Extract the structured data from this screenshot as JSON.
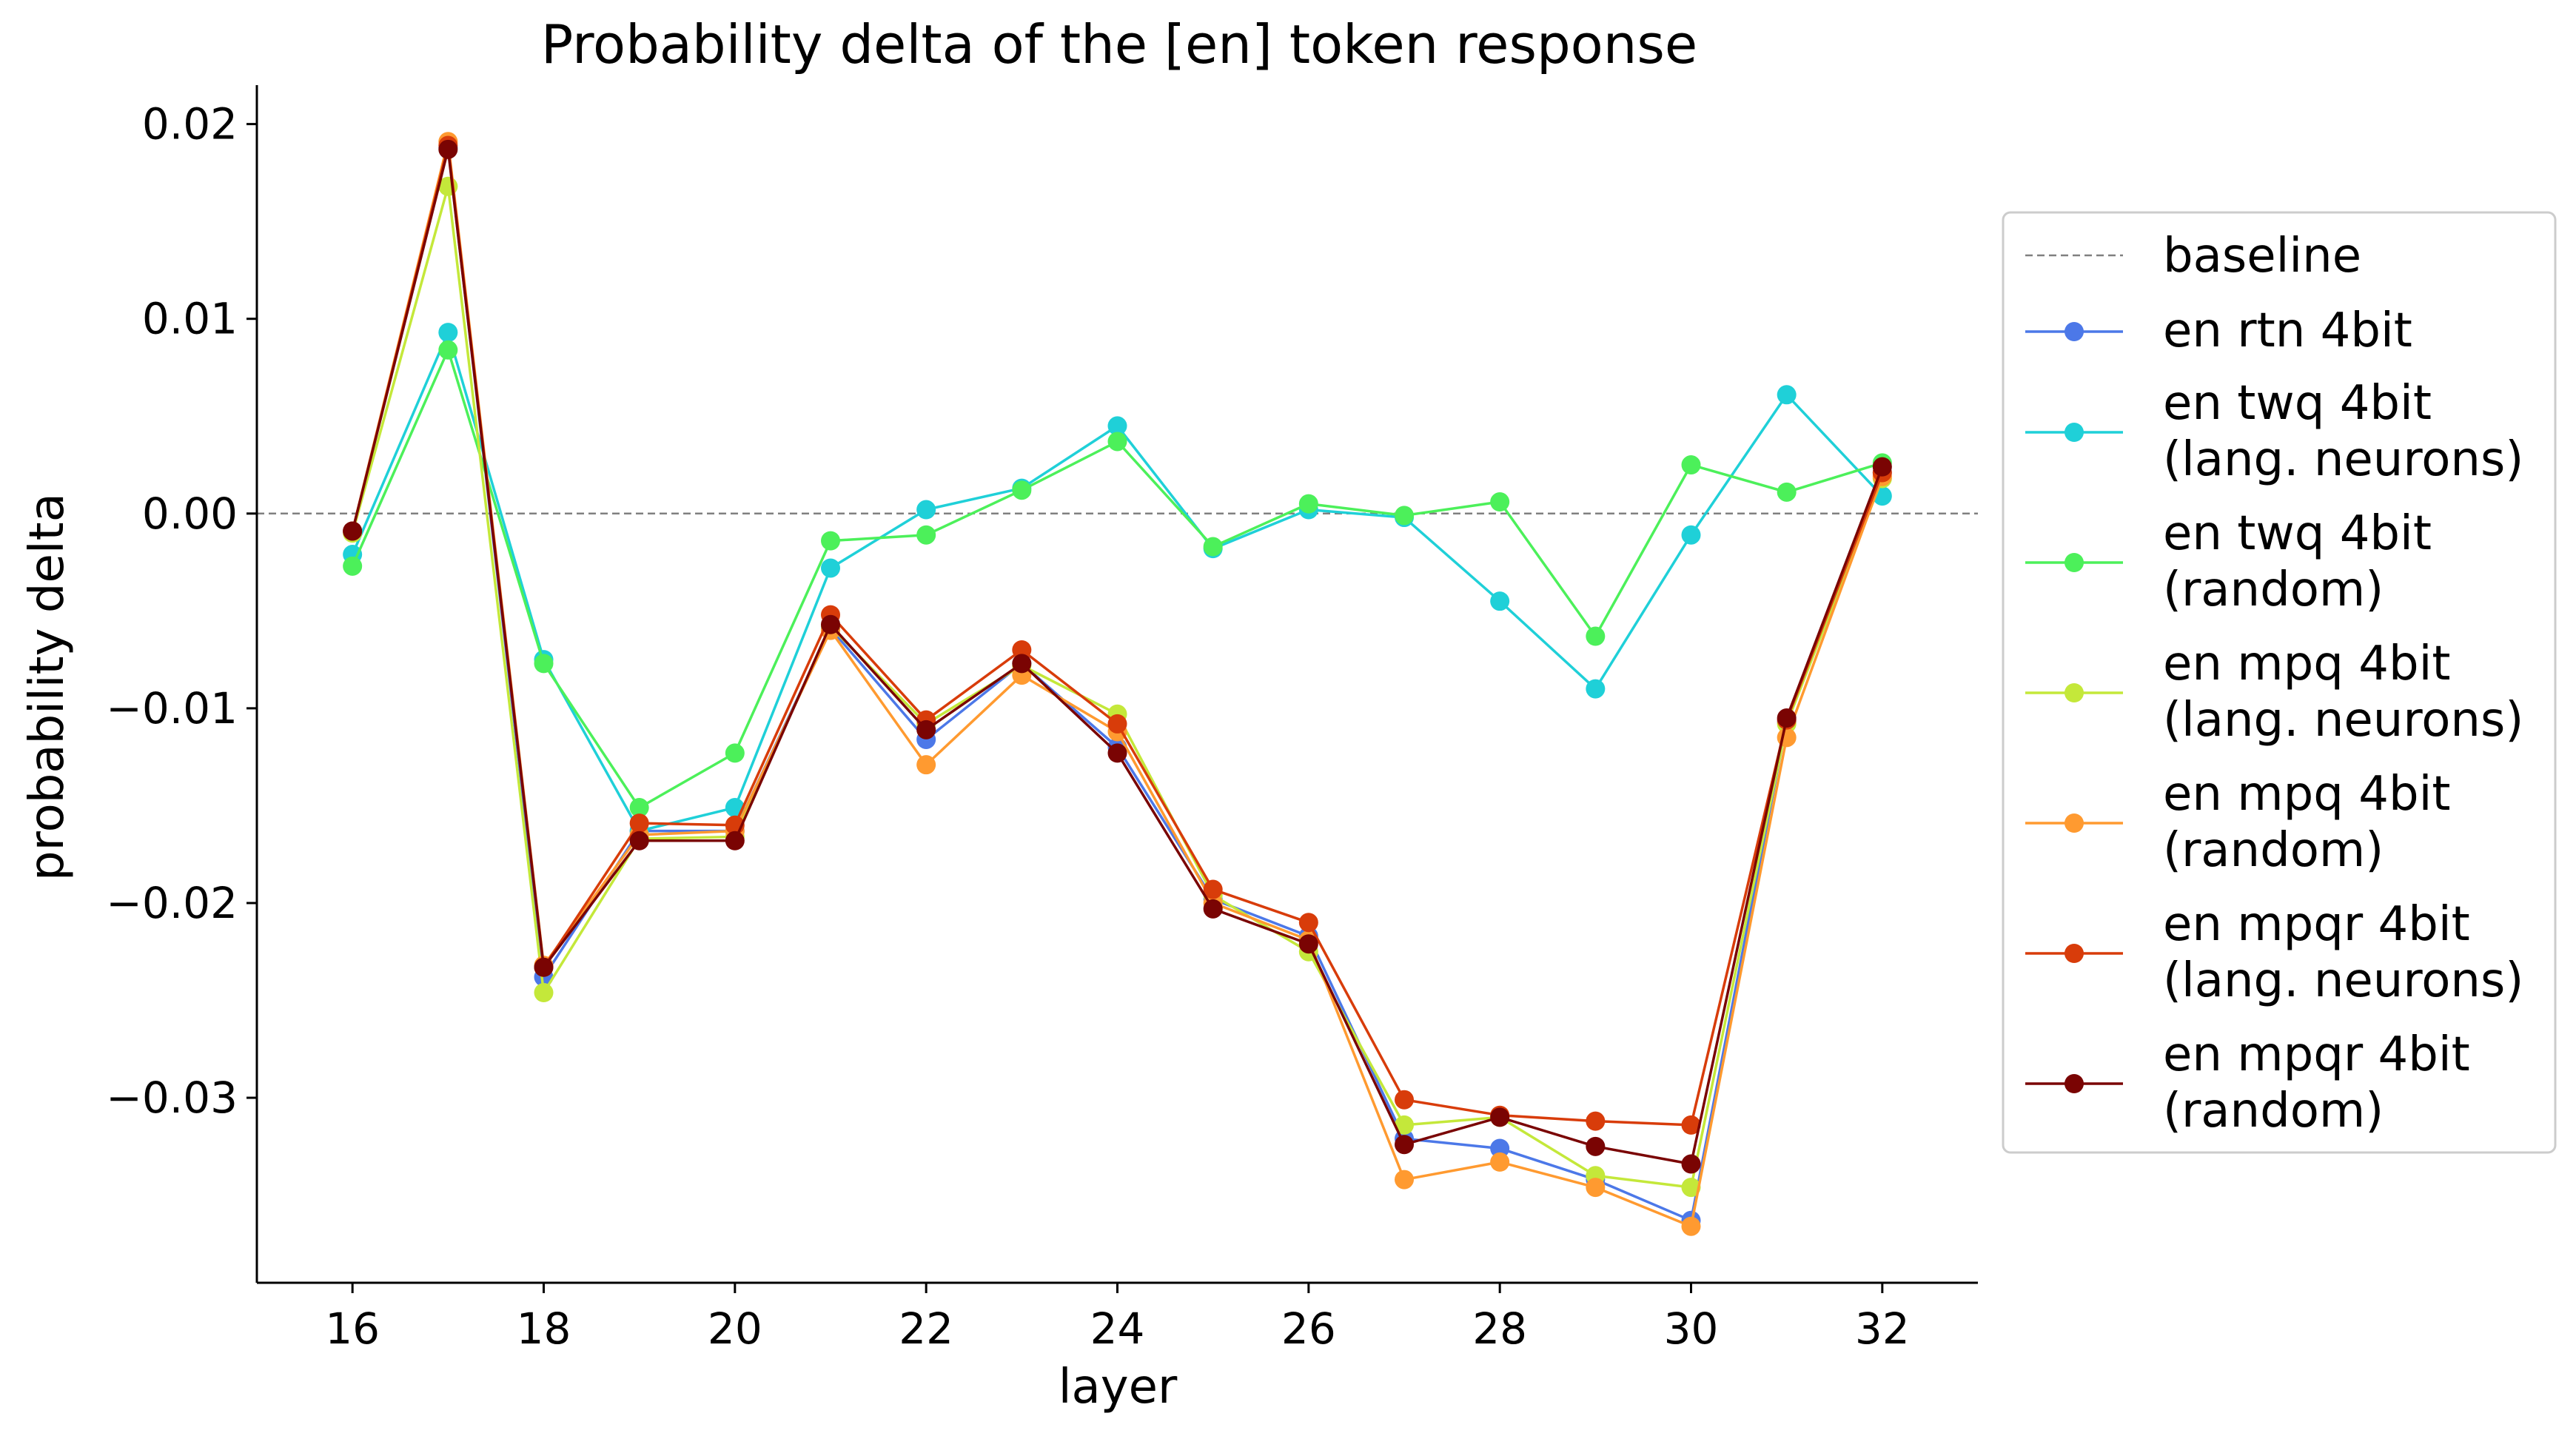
{
  "chart_data": {
    "type": "line",
    "title": "Probability delta of the [en] token response",
    "xlabel": "layer",
    "ylabel": "probability delta",
    "xlim": [
      15,
      33
    ],
    "ylim": [
      -0.0395,
      0.022
    ],
    "xticks": [
      16,
      18,
      20,
      22,
      24,
      26,
      28,
      30,
      32
    ],
    "xtick_labels": [
      "16",
      "18",
      "20",
      "22",
      "24",
      "26",
      "28",
      "30",
      "32"
    ],
    "yticks": [
      0.02,
      0.01,
      0.0,
      -0.01,
      -0.02,
      -0.03
    ],
    "ytick_labels": [
      "0.02",
      "0.01",
      "0.00",
      "−0.01",
      "−0.02",
      "−0.03"
    ],
    "grid": false,
    "legend_position": "right, outside plot",
    "baseline": {
      "name": "baseline",
      "value": 0.0,
      "color": "#808080",
      "style": "dashed"
    },
    "x": [
      16,
      17,
      18,
      19,
      20,
      21,
      22,
      23,
      24,
      25,
      26,
      27,
      28,
      29,
      30,
      31,
      32
    ],
    "series": [
      {
        "name": [
          "en rtn 4bit"
        ],
        "color": "#4c78e8",
        "values": [
          -0.0009,
          0.0188,
          -0.0238,
          -0.0163,
          -0.0163,
          -0.0059,
          -0.0116,
          -0.0077,
          -0.012,
          -0.0198,
          -0.0217,
          -0.0321,
          -0.0326,
          -0.0342,
          -0.0363,
          -0.0107,
          0.0021
        ]
      },
      {
        "name": [
          "en twq 4bit",
          "(lang. neurons)"
        ],
        "color": "#1fd0d8",
        "values": [
          -0.0021,
          0.0093,
          -0.0075,
          -0.0163,
          -0.0151,
          -0.0028,
          0.0002,
          0.0013,
          0.0045,
          -0.0018,
          0.0002,
          -0.0002,
          -0.0045,
          -0.009,
          -0.0011,
          0.0061,
          0.0009
        ]
      },
      {
        "name": [
          "en twq 4bit",
          "(random)"
        ],
        "color": "#4cf05a",
        "values": [
          -0.0027,
          0.0084,
          -0.0077,
          -0.0151,
          -0.0123,
          -0.0014,
          -0.0011,
          0.0012,
          0.0037,
          -0.0017,
          0.0005,
          -0.0001,
          0.0006,
          -0.0063,
          0.0025,
          0.0011,
          0.0026
        ]
      },
      {
        "name": [
          "en mpq 4bit",
          "(lang. neurons)"
        ],
        "color": "#c4e83a",
        "values": [
          -0.001,
          0.0168,
          -0.0246,
          -0.0167,
          -0.0166,
          -0.0058,
          -0.0108,
          -0.0078,
          -0.0103,
          -0.0196,
          -0.0225,
          -0.0314,
          -0.031,
          -0.034,
          -0.0346,
          -0.0108,
          0.0018
        ]
      },
      {
        "name": [
          "en mpq 4bit",
          "(random)"
        ],
        "color": "#ff9a30",
        "values": [
          -0.0009,
          0.0191,
          -0.0232,
          -0.0165,
          -0.0163,
          -0.006,
          -0.0129,
          -0.0083,
          -0.0112,
          -0.02,
          -0.0219,
          -0.0342,
          -0.0333,
          -0.0346,
          -0.0366,
          -0.0115,
          0.0019
        ]
      },
      {
        "name": [
          "en mpqr 4bit",
          "(lang. neurons)"
        ],
        "color": "#d83c0a",
        "values": [
          -0.0009,
          0.0189,
          -0.0233,
          -0.0159,
          -0.016,
          -0.0052,
          -0.0106,
          -0.007,
          -0.0108,
          -0.0193,
          -0.021,
          -0.0301,
          -0.0309,
          -0.0312,
          -0.0314,
          -0.0106,
          0.0021
        ]
      },
      {
        "name": [
          "en mpqr 4bit",
          "(random)"
        ],
        "color": "#7a0403",
        "values": [
          -0.0009,
          0.0187,
          -0.0233,
          -0.0168,
          -0.0168,
          -0.0057,
          -0.0111,
          -0.0077,
          -0.0123,
          -0.0203,
          -0.0221,
          -0.0324,
          -0.031,
          -0.0325,
          -0.0334,
          -0.0105,
          0.0024
        ]
      }
    ]
  }
}
